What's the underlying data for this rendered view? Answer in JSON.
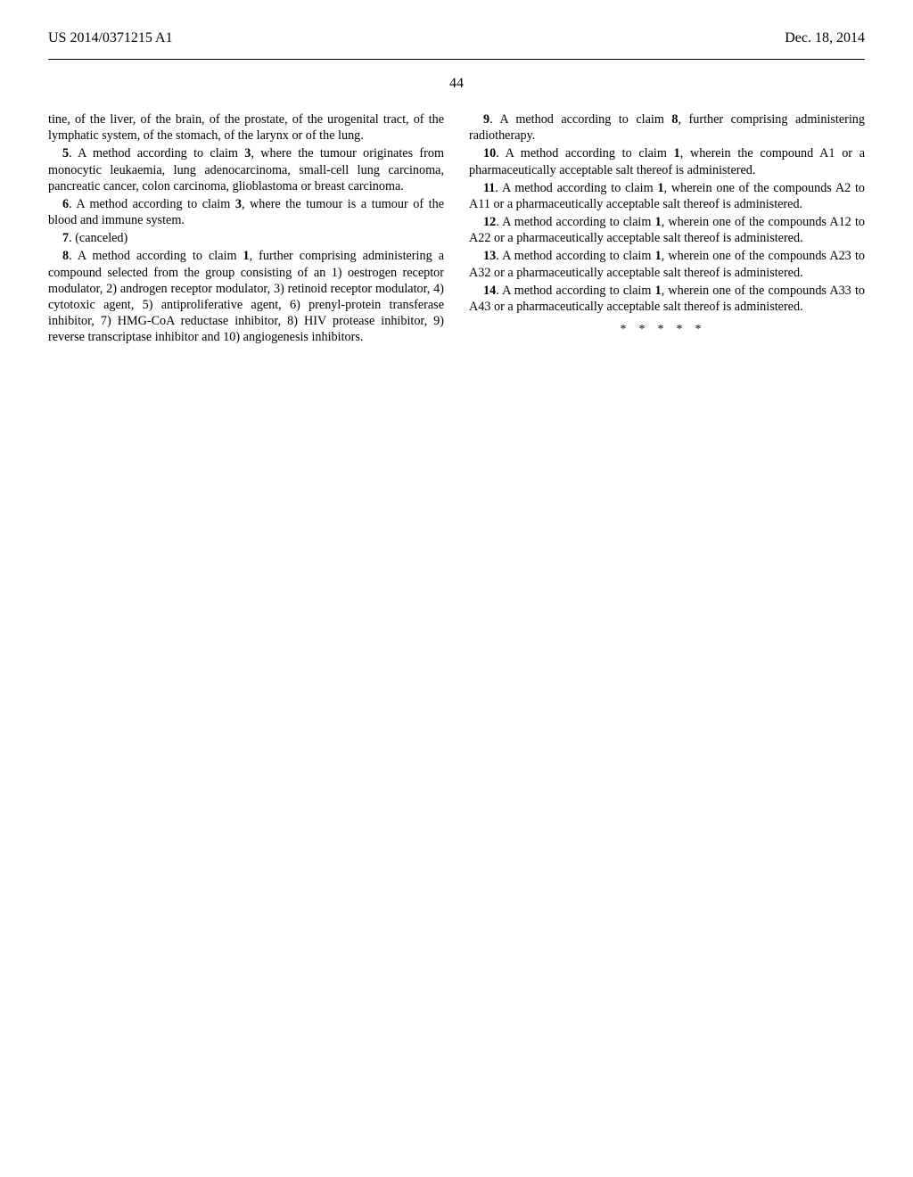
{
  "header": {
    "pub_number": "US 2014/0371215 A1",
    "pub_date": "Dec. 18, 2014"
  },
  "page_number": "44",
  "left_column": {
    "p0": "tine, of the liver, of the brain, of the prostate, of the urogenital tract, of the lymphatic system, of the stomach, of the larynx or of the lung.",
    "c5_num": "5",
    "c5_text": ". A method according to claim ",
    "c5_ref": "3",
    "c5_tail": ", where the tumour originates from monocytic leukaemia, lung adenocarcinoma, small-cell lung carcinoma, pancreatic cancer, colon carcinoma, glioblastoma or breast carcinoma.",
    "c6_num": "6",
    "c6_text": ". A method according to claim ",
    "c6_ref": "3",
    "c6_tail": ", where the tumour is a tumour of the blood and immune system.",
    "c7_num": "7",
    "c7_text": ". (canceled)",
    "c8_num": "8",
    "c8_text": ". A method according to claim ",
    "c8_ref": "1",
    "c8_tail": ", further comprising administering a compound selected from the group consisting of an 1) oestrogen receptor modulator, 2) androgen receptor modulator, 3) retinoid receptor modulator, 4) cytotoxic agent, 5) antiproliferative agent, 6) prenyl-protein transferase inhibitor, 7) HMG-CoA reductase inhibitor, 8) HIV protease inhibitor, 9) reverse transcriptase inhibitor and 10) angiogenesis inhibitors."
  },
  "right_column": {
    "c9_num": "9",
    "c9_text": ". A method according to claim ",
    "c9_ref": "8",
    "c9_tail": ", further comprising administering radiotherapy.",
    "c10_num": "10",
    "c10_text": ". A method according to claim ",
    "c10_ref": "1",
    "c10_tail": ", wherein the compound A1 or a pharmaceutically acceptable salt thereof is administered.",
    "c11_num": "11",
    "c11_text": ". A method according to claim ",
    "c11_ref": "1",
    "c11_tail": ", wherein one of the compounds A2 to A11 or a pharmaceutically acceptable salt thereof is administered.",
    "c12_num": "12",
    "c12_text": ". A method according to claim ",
    "c12_ref": "1",
    "c12_tail": ", wherein one of the compounds A12 to A22 or a pharmaceutically acceptable salt thereof is administered.",
    "c13_num": "13",
    "c13_text": ". A method according to claim ",
    "c13_ref": "1",
    "c13_tail": ", wherein one of the compounds A23 to A32 or a pharmaceutically acceptable salt thereof is administered.",
    "c14_num": "14",
    "c14_text": ". A method according to claim ",
    "c14_ref": "1",
    "c14_tail": ", wherein one of the compounds A33 to A43 or a pharmaceutically acceptable salt thereof is administered.",
    "stars": "*****"
  }
}
